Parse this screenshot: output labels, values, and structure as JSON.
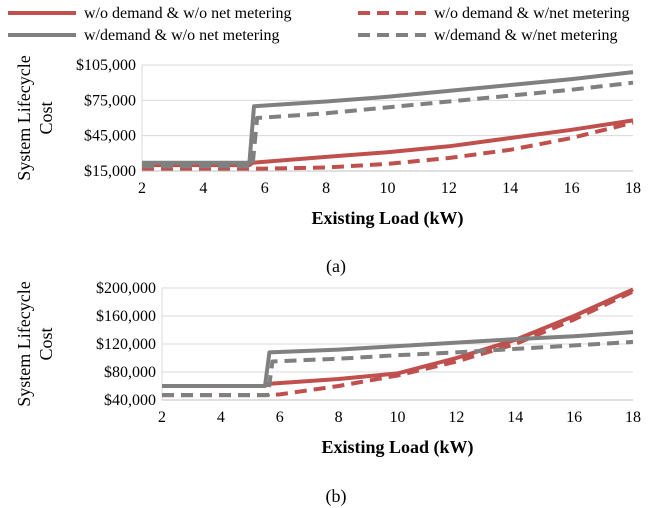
{
  "legend": [
    {
      "label": "w/o demand & w/o net metering",
      "color": "#c0504d",
      "dash": "solid"
    },
    {
      "label": "w/o demand & w/net metering",
      "color": "#c0504d",
      "dash": "dashed"
    },
    {
      "label": "w/demand & w/o net metering",
      "color": "#808080",
      "dash": "solid"
    },
    {
      "label": "w/demand & w/net metering",
      "color": "#808080",
      "dash": "dashed"
    }
  ],
  "chart_data": [
    {
      "type": "line",
      "panel_label": "(a)",
      "xlabel": "Existing Load (kW)",
      "ylabel": "System Lifecycle Cost",
      "xlim": [
        2,
        18
      ],
      "ylim": [
        15000,
        105000
      ],
      "x_ticks": [
        2,
        4,
        6,
        8,
        10,
        12,
        14,
        16,
        18
      ],
      "y_ticks": [
        15000,
        45000,
        75000,
        105000
      ],
      "y_tick_labels": [
        "$15,000",
        "$45,000",
        "$75,000",
        "$105,000"
      ],
      "grid": "horizontal",
      "legend_position": "top",
      "series": [
        {
          "name": "w/o demand & w/o net metering",
          "color": "#c0504d",
          "dash": "solid",
          "points": [
            [
              2,
              20000
            ],
            [
              5.5,
              20000
            ],
            [
              5.6,
              22000
            ],
            [
              8,
              27000
            ],
            [
              10,
              31000
            ],
            [
              12,
              36000
            ],
            [
              14,
              43000
            ],
            [
              16,
              50000
            ],
            [
              18,
              58000
            ]
          ]
        },
        {
          "name": "w/o demand & w/net metering",
          "color": "#c0504d",
          "dash": "dashed",
          "points": [
            [
              2,
              17000
            ],
            [
              5.5,
              17000
            ],
            [
              6,
              17000
            ],
            [
              8,
              18000
            ],
            [
              10,
              21000
            ],
            [
              12,
              26000
            ],
            [
              14,
              33000
            ],
            [
              16,
              43000
            ],
            [
              18,
              56000
            ]
          ]
        },
        {
          "name": "w/demand & w/o net metering",
          "color": "#808080",
          "dash": "solid",
          "points": [
            [
              2,
              22000
            ],
            [
              5.5,
              22000
            ],
            [
              5.65,
              70000
            ],
            [
              8,
              74000
            ],
            [
              10,
              78000
            ],
            [
              12,
              83000
            ],
            [
              14,
              88000
            ],
            [
              16,
              93000
            ],
            [
              18,
              99000
            ]
          ]
        },
        {
          "name": "w/demand & w/net metering",
          "color": "#808080",
          "dash": "dashed",
          "points": [
            [
              2,
              19000
            ],
            [
              5.6,
              19000
            ],
            [
              5.75,
              60000
            ],
            [
              8,
              64000
            ],
            [
              10,
              69000
            ],
            [
              12,
              74000
            ],
            [
              14,
              79000
            ],
            [
              16,
              84000
            ],
            [
              18,
              90000
            ]
          ]
        }
      ]
    },
    {
      "type": "line",
      "panel_label": "(b)",
      "xlabel": "Existing Load (kW)",
      "ylabel": "System Lifecycle Cost",
      "xlim": [
        2,
        18
      ],
      "ylim": [
        40000,
        200000
      ],
      "x_ticks": [
        2,
        4,
        6,
        8,
        10,
        12,
        14,
        16,
        18
      ],
      "y_ticks": [
        40000,
        80000,
        120000,
        160000,
        200000
      ],
      "y_tick_labels": [
        "$40,000",
        "$80,000",
        "$120,000",
        "$160,000",
        "$200,000"
      ],
      "grid": "horizontal",
      "series": [
        {
          "name": "w/o demand & w/o net metering",
          "color": "#c0504d",
          "dash": "solid",
          "points": [
            [
              2,
              60000
            ],
            [
              5.5,
              60000
            ],
            [
              5.6,
              63000
            ],
            [
              8,
              70000
            ],
            [
              10,
              78000
            ],
            [
              12,
              100000
            ],
            [
              14,
              126000
            ],
            [
              16,
              160000
            ],
            [
              18,
              198000
            ]
          ]
        },
        {
          "name": "w/o demand & w/net metering",
          "color": "#c0504d",
          "dash": "dashed",
          "points": [
            [
              2,
              47000
            ],
            [
              5.5,
              47000
            ],
            [
              6,
              48000
            ],
            [
              8,
              60000
            ],
            [
              10,
              75000
            ],
            [
              12,
              95000
            ],
            [
              14,
              120000
            ],
            [
              16,
              155000
            ],
            [
              18,
              195000
            ]
          ]
        },
        {
          "name": "w/demand & w/o net metering",
          "color": "#808080",
          "dash": "solid",
          "points": [
            [
              2,
              60000
            ],
            [
              5.5,
              60000
            ],
            [
              5.65,
              108000
            ],
            [
              8,
              112000
            ],
            [
              10,
              117000
            ],
            [
              12,
              122000
            ],
            [
              14,
              127000
            ],
            [
              16,
              131000
            ],
            [
              18,
              137000
            ]
          ]
        },
        {
          "name": "w/demand & w/net metering",
          "color": "#808080",
          "dash": "dashed",
          "points": [
            [
              2,
              47000
            ],
            [
              5.6,
              47000
            ],
            [
              5.75,
              95000
            ],
            [
              8,
              99000
            ],
            [
              10,
              104000
            ],
            [
              12,
              108000
            ],
            [
              14,
              113000
            ],
            [
              16,
              118000
            ],
            [
              18,
              123000
            ]
          ]
        }
      ]
    }
  ]
}
